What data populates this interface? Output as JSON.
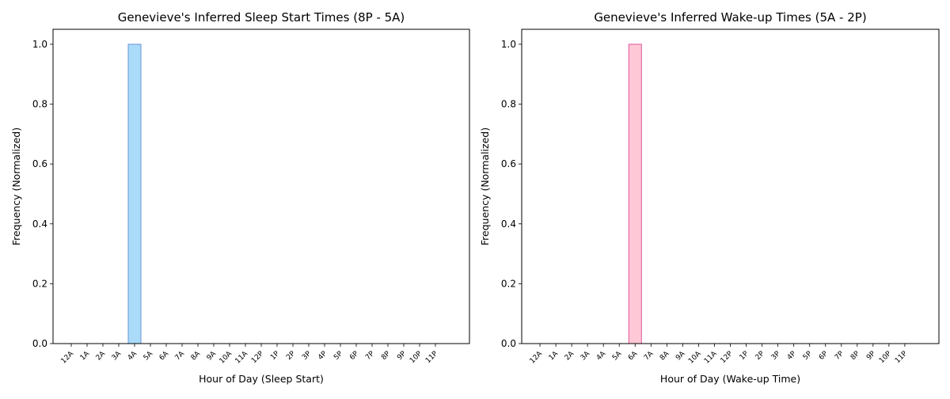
{
  "chart_data": [
    {
      "type": "bar",
      "title": "Genevieve's Inferred Sleep Start Times (8P - 5A)",
      "xlabel": "Hour of Day (Sleep Start)",
      "ylabel": "Frequency (Normalized)",
      "ylim": [
        0,
        1.05
      ],
      "yticks": [
        0.0,
        0.2,
        0.4,
        0.6,
        0.8,
        1.0
      ],
      "ytick_labels": [
        "0.0",
        "0.2",
        "0.4",
        "0.6",
        "0.8",
        "1.0"
      ],
      "categories": [
        "12A",
        "1A",
        "2A",
        "3A",
        "4A",
        "5A",
        "6A",
        "7A",
        "8A",
        "9A",
        "10A",
        "11A",
        "12P",
        "1P",
        "2P",
        "3P",
        "4P",
        "5P",
        "6P",
        "7P",
        "8P",
        "9P",
        "10P",
        "11P"
      ],
      "values": [
        0,
        0,
        0,
        0,
        1.0,
        0,
        0,
        0,
        0,
        0,
        0,
        0,
        0,
        0,
        0,
        0,
        0,
        0,
        0,
        0,
        0,
        0,
        0,
        0
      ],
      "bar_color": "#aadcfa",
      "edge_color": "#6a93d6",
      "grid": false
    },
    {
      "type": "bar",
      "title": "Genevieve's Inferred Wake-up Times (5A - 2P)",
      "xlabel": "Hour of Day (Wake-up Time)",
      "ylabel": "Frequency (Normalized)",
      "ylim": [
        0,
        1.05
      ],
      "yticks": [
        0.0,
        0.2,
        0.4,
        0.6,
        0.8,
        1.0
      ],
      "ytick_labels": [
        "0.0",
        "0.2",
        "0.4",
        "0.6",
        "0.8",
        "1.0"
      ],
      "categories": [
        "12A",
        "1A",
        "2A",
        "3A",
        "4A",
        "5A",
        "6A",
        "7A",
        "8A",
        "9A",
        "10A",
        "11A",
        "12P",
        "1P",
        "2P",
        "3P",
        "4P",
        "5P",
        "6P",
        "7P",
        "8P",
        "9P",
        "10P",
        "11P"
      ],
      "values": [
        0,
        0,
        0,
        0,
        0,
        0,
        1.0,
        0,
        0,
        0,
        0,
        0,
        0,
        0,
        0,
        0,
        0,
        0,
        0,
        0,
        0,
        0,
        0,
        0
      ],
      "bar_color": "#ffc8d6",
      "edge_color": "#e0559e",
      "grid": false
    }
  ]
}
